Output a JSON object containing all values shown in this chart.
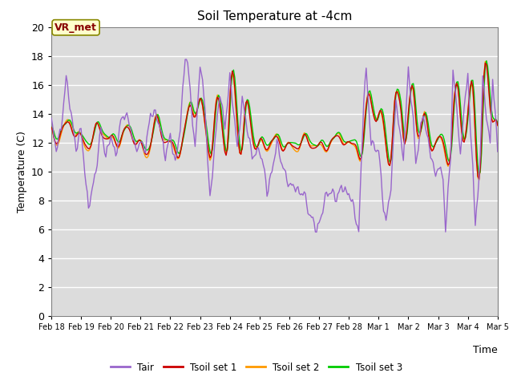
{
  "title": "Soil Temperature at -4cm",
  "xlabel": "Time",
  "ylabel": "Temperature (C)",
  "ylim": [
    0,
    20
  ],
  "yticks": [
    0,
    2,
    4,
    6,
    8,
    10,
    12,
    14,
    16,
    18,
    20
  ],
  "xlim_start": 0,
  "xlim_end": 360,
  "xtick_labels": [
    "Feb 18",
    "Feb 19",
    "Feb 20",
    "Feb 21",
    "Feb 22",
    "Feb 23",
    "Feb 24",
    "Feb 25",
    "Feb 26",
    "Feb 27",
    "Feb 28",
    "Mar 1",
    "Mar 2",
    "Mar 3",
    "Mar 4",
    "Mar 5"
  ],
  "xtick_positions": [
    0,
    24,
    48,
    72,
    96,
    120,
    144,
    168,
    192,
    216,
    240,
    264,
    288,
    312,
    336,
    360
  ],
  "colors": {
    "Tair": "#9966cc",
    "Tsoil1": "#cc0000",
    "Tsoil2": "#ff9900",
    "Tsoil3": "#00cc00"
  },
  "legend_labels": [
    "Tair",
    "Tsoil set 1",
    "Tsoil set 2",
    "Tsoil set 3"
  ],
  "annotation_text": "VR_met",
  "bg_color": "#dcdcdc",
  "plot_bg_color": "#dcdcdc",
  "grid_color": "#ffffff",
  "title_fontsize": 11
}
